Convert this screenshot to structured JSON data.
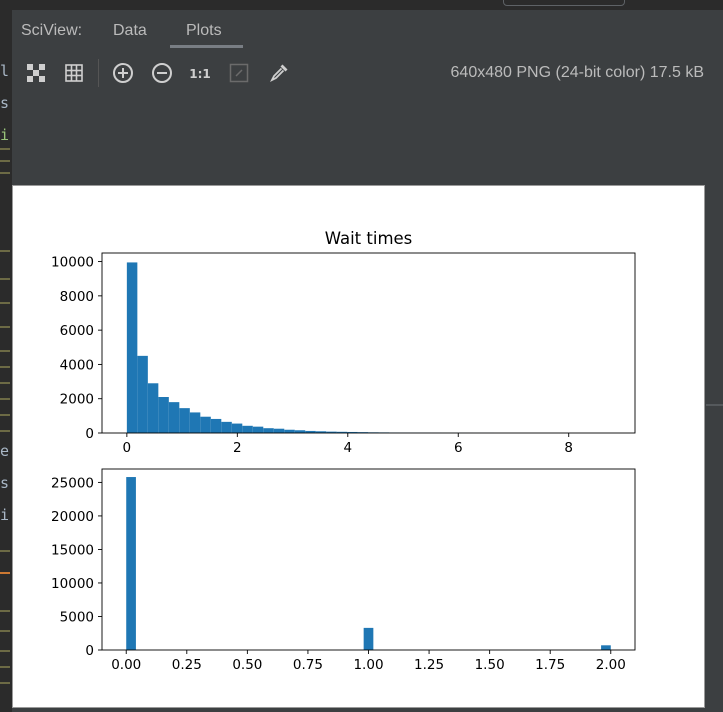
{
  "tabs": {
    "title": "SciView:",
    "items": [
      {
        "label": "Data",
        "active": false
      },
      {
        "label": "Plots",
        "active": true
      }
    ]
  },
  "toolbar": {
    "buttons": [
      {
        "icon": "fit-to-screen-icon"
      },
      {
        "icon": "grid-icon"
      },
      {
        "icon": "zoom-in-icon"
      },
      {
        "icon": "zoom-out-icon"
      },
      {
        "icon": "actual-size-icon",
        "label": "1:1"
      },
      {
        "icon": "toggle-background-icon"
      },
      {
        "icon": "color-picker-icon"
      }
    ],
    "image_info": "640x480 PNG (24-bit color) 17.5 kB"
  },
  "gutter_letters": [
    "l",
    "s",
    "i",
    "e",
    "s",
    "i"
  ],
  "colors": {
    "bar": "#1f77b4",
    "background": "#3c3f41",
    "plot_bg": "#ffffff"
  },
  "chart_data": [
    {
      "type": "bar",
      "title": "Wait times",
      "xlim": [
        -0.45,
        9.2
      ],
      "ylim": [
        0,
        10500
      ],
      "xticks": [
        0,
        2,
        4,
        6,
        8
      ],
      "yticks": [
        0,
        2000,
        4000,
        6000,
        8000,
        10000
      ],
      "xtick_labels": [
        "0",
        "2",
        "4",
        "6",
        "8"
      ],
      "ytick_labels": [
        "0",
        "2000",
        "4000",
        "6000",
        "8000",
        "10000"
      ],
      "bin_width": 0.19,
      "bins_start": [
        0,
        0.19,
        0.38,
        0.57,
        0.76,
        0.95,
        1.14,
        1.33,
        1.52,
        1.71,
        1.9,
        2.09,
        2.28,
        2.47,
        2.66,
        2.85,
        3.04,
        3.23,
        3.42,
        3.61,
        3.8,
        3.99,
        4.18,
        4.37,
        4.56,
        4.75,
        4.94,
        5.13,
        5.32,
        5.51,
        5.7,
        5.89,
        6.08,
        6.27,
        6.46
      ],
      "values": [
        9950,
        4500,
        2900,
        2100,
        1800,
        1450,
        1200,
        950,
        820,
        650,
        550,
        420,
        370,
        280,
        250,
        190,
        160,
        120,
        100,
        80,
        70,
        60,
        50,
        40,
        35,
        30,
        25,
        20,
        18,
        15,
        12,
        10,
        8,
        6,
        5
      ]
    },
    {
      "type": "bar",
      "title": "",
      "xlim": [
        -0.1,
        2.1
      ],
      "ylim": [
        0,
        27000
      ],
      "xticks": [
        0,
        0.25,
        0.5,
        0.75,
        1.0,
        1.25,
        1.5,
        1.75,
        2.0
      ],
      "yticks": [
        0,
        5000,
        10000,
        15000,
        20000,
        25000
      ],
      "xtick_labels": [
        "0.00",
        "0.25",
        "0.50",
        "0.75",
        "1.00",
        "1.25",
        "1.50",
        "1.75",
        "2.00"
      ],
      "ytick_labels": [
        "0",
        "5000",
        "10000",
        "15000",
        "20000",
        "25000"
      ],
      "bin_width": 0.04,
      "bins_start": [
        0.0,
        0.98,
        1.96
      ],
      "values": [
        25800,
        3300,
        700
      ]
    }
  ]
}
